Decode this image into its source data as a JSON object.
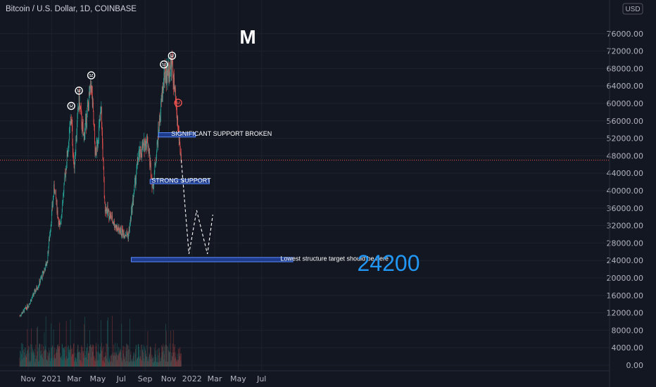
{
  "header": {
    "symbol": "Bitcoin / U.S. Dollar, 1D, COINBASE",
    "currency": "USD",
    "pattern_letter": "M"
  },
  "colors": {
    "background": "#131722",
    "up": "#26a69a",
    "down": "#ef5350",
    "grid": "#1e222d",
    "axis_text": "#b2b5be",
    "box_fill": "#1e3a8a",
    "box_stroke": "#5b8cff",
    "big_label": "#2196f3",
    "price_line": "#ef5350"
  },
  "chart_data": {
    "type": "candlestick",
    "title": "Bitcoin / U.S. Dollar, 1D, COINBASE",
    "ylim": [
      0,
      80000
    ],
    "y_ticks": [
      "0.00",
      "4000.00",
      "8000.00",
      "12000.00",
      "16000.00",
      "20000.00",
      "24000.00",
      "28000.00",
      "32000.00",
      "36000.00",
      "40000.00",
      "44000.00",
      "48000.00",
      "52000.00",
      "56000.00",
      "60000.00",
      "64000.00",
      "68000.00",
      "72000.00",
      "76000.00"
    ],
    "x_ticks": [
      "Nov",
      "2021",
      "Mar",
      "May",
      "Jul",
      "Sep",
      "Nov",
      "2022",
      "Mar",
      "May",
      "Jul"
    ],
    "price_path": [
      [
        "2020-10-10",
        11300
      ],
      [
        "2020-11-01",
        13700
      ],
      [
        "2020-12-01",
        19000
      ],
      [
        "2020-12-20",
        23500
      ],
      [
        "2021-01-08",
        41000
      ],
      [
        "2021-01-22",
        31000
      ],
      [
        "2021-02-08",
        46000
      ],
      [
        "2021-02-21",
        57000
      ],
      [
        "2021-02-28",
        45000
      ],
      [
        "2021-03-13",
        61000
      ],
      [
        "2021-03-25",
        52000
      ],
      [
        "2021-04-14",
        64500
      ],
      [
        "2021-04-25",
        48000
      ],
      [
        "2021-05-10",
        58000
      ],
      [
        "2021-05-19",
        36500
      ],
      [
        "2021-06-22",
        31000
      ],
      [
        "2021-07-20",
        29800
      ],
      [
        "2021-08-14",
        47500
      ],
      [
        "2021-09-07",
        52000
      ],
      [
        "2021-09-21",
        40500
      ],
      [
        "2021-10-20",
        66000
      ],
      [
        "2021-11-10",
        68800
      ],
      [
        "2021-11-26",
        54000
      ],
      [
        "2021-12-04",
        47000
      ]
    ],
    "volume_note": "daily volume histogram at bottom",
    "annotations": {
      "peak_markers": [
        {
          "x": "2021-02-21",
          "y": 57500
        },
        {
          "x": "2021-03-13",
          "y": 61000
        },
        {
          "x": "2021-04-14",
          "y": 64500
        },
        {
          "x": "2021-10-20",
          "y": 67000
        },
        {
          "x": "2021-11-10",
          "y": 69000
        }
      ],
      "current_marker": {
        "x": "2021-11-26",
        "y": 59500
      },
      "current_price": 47000,
      "boxes": [
        {
          "label": "SIGNIFICANT SUPPORT BROKEN",
          "x0": "2021-10-06",
          "x1": "2022-01-10",
          "y_low": 52300,
          "y_high": 53300
        },
        {
          "label": "STRONG SUPPORT",
          "x0": "2021-09-14",
          "x1": "2022-02-15",
          "y_low": 41600,
          "y_high": 42600
        },
        {
          "label": "Lowest structure target should be here",
          "x0": "2021-07-27",
          "x1": "2022-09-20",
          "y_low": 23700,
          "y_high": 24700
        }
      ],
      "projection": [
        [
          "2021-12-04",
          47000
        ],
        [
          "2021-12-24",
          25500
        ],
        [
          "2022-01-13",
          35500
        ],
        [
          "2022-02-10",
          25500
        ],
        [
          "2022-02-24",
          34500
        ]
      ],
      "big_number": "24200"
    }
  }
}
